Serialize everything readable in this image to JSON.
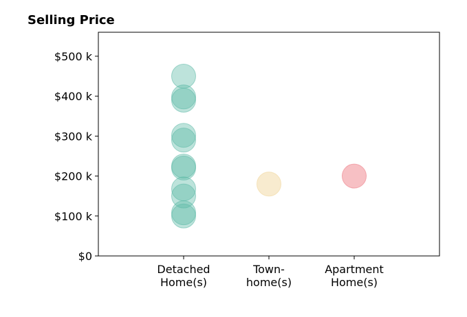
{
  "chart_data": {
    "type": "scatter",
    "title": "Selling Price",
    "xlabel": "",
    "ylabel": "",
    "categories": [
      [
        "Detached",
        "Home(s)"
      ],
      [
        "Town-",
        "home(s)"
      ],
      [
        "Apartment",
        "Home(s)"
      ]
    ],
    "ylim": [
      0,
      560000
    ],
    "yticks": [
      {
        "value": 0,
        "label": "$0"
      },
      {
        "value": 100000,
        "label": "$100 k"
      },
      {
        "value": 200000,
        "label": "$200 k"
      },
      {
        "value": 300000,
        "label": "$300 k"
      },
      {
        "value": 400000,
        "label": "$400 k"
      },
      {
        "value": 500000,
        "label": "$500 k"
      }
    ],
    "grid": false,
    "series": [
      {
        "category_index": 0,
        "color": "#5bb8a6",
        "opacity": 0.4,
        "values": [
          450000,
          398000,
          390000,
          302000,
          290000,
          225000,
          220000,
          168000,
          150000,
          108000,
          100000
        ]
      },
      {
        "category_index": 1,
        "color": "#f2dba8",
        "opacity": 0.55,
        "values": [
          180000
        ]
      },
      {
        "category_index": 2,
        "color": "#f08c94",
        "opacity": 0.55,
        "values": [
          200000
        ]
      }
    ]
  }
}
